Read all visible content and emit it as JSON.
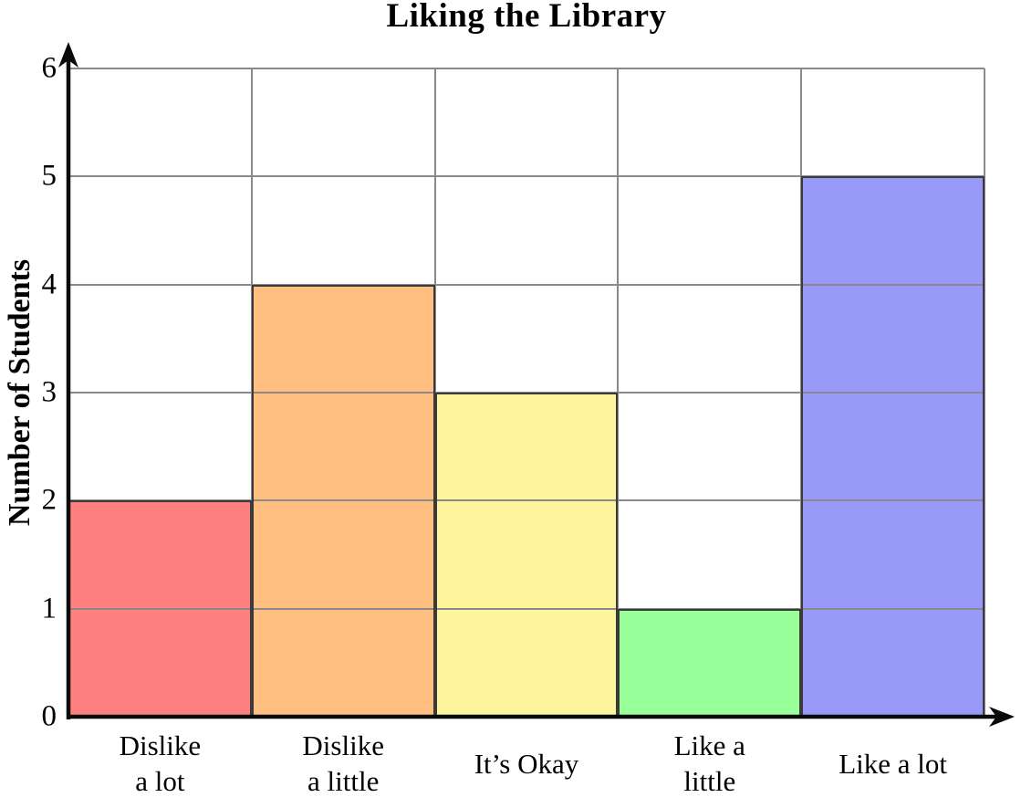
{
  "chart_data": {
    "type": "bar",
    "title": "Liking the Library",
    "ylabel": "Number of Students",
    "xlabel": "",
    "categories": [
      "Dislike\na lot",
      "Dislike\na little",
      "It’s Okay",
      "Like a\nlittle",
      "Like a lot"
    ],
    "values": [
      2,
      4,
      3,
      1,
      5
    ],
    "bar_colors": [
      "#FF8080",
      "#FFBF80",
      "#FDF49B",
      "#99FF99",
      "#9999FA"
    ],
    "ylim": [
      0,
      6
    ],
    "ytick_step": 1,
    "yticks": [
      0,
      1,
      2,
      3,
      4,
      5,
      6
    ],
    "grid": true,
    "legend": false,
    "grid_color": "#8a8a8a",
    "bar_border_color": "#3a3a3a",
    "axis_color": "#0a0a0a"
  }
}
